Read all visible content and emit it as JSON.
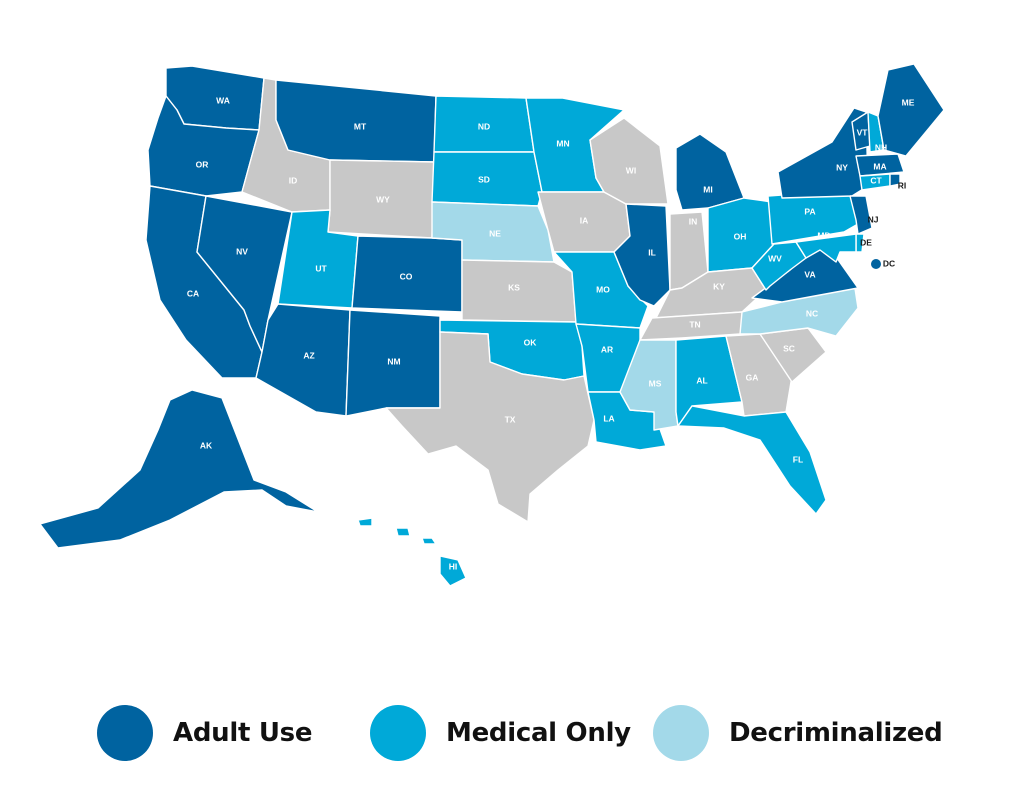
{
  "colors": {
    "adult_use": "#0063a0",
    "medical_only": "#00a9d8",
    "decriminalized": "#a3d9e9",
    "none": "#c8c8c8"
  },
  "legend": [
    {
      "key": "adult_use",
      "label": "Adult Use",
      "color": "#0063a0"
    },
    {
      "key": "medical_only",
      "label": "Medical Only",
      "color": "#00a9d8"
    },
    {
      "key": "decriminalized",
      "label": "Decriminalized",
      "color": "#a3d9e9"
    }
  ],
  "states": {
    "WA": "adult_use",
    "OR": "adult_use",
    "CA": "adult_use",
    "NV": "adult_use",
    "ID": "none",
    "MT": "adult_use",
    "WY": "none",
    "UT": "medical_only",
    "CO": "adult_use",
    "AZ": "adult_use",
    "NM": "adult_use",
    "ND": "medical_only",
    "SD": "medical_only",
    "NE": "decriminalized",
    "KS": "none",
    "OK": "medical_only",
    "TX": "none",
    "MN": "medical_only",
    "IA": "none",
    "MO": "medical_only",
    "AR": "medical_only",
    "LA": "medical_only",
    "WI": "none",
    "IL": "adult_use",
    "MI": "adult_use",
    "IN": "none",
    "OH": "medical_only",
    "KY": "none",
    "TN": "none",
    "MS": "decriminalized",
    "AL": "medical_only",
    "GA": "none",
    "FL": "medical_only",
    "SC": "none",
    "NC": "decriminalized",
    "VA": "adult_use",
    "WV": "medical_only",
    "PA": "medical_only",
    "NY": "adult_use",
    "VT": "adult_use",
    "NH": "medical_only",
    "ME": "adult_use",
    "MA": "adult_use",
    "CT": "medical_only",
    "RI": "adult_use",
    "NJ": "adult_use",
    "DE": "medical_only",
    "MD": "medical_only",
    "DC": "adult_use",
    "AK": "adult_use",
    "HI": "medical_only"
  }
}
